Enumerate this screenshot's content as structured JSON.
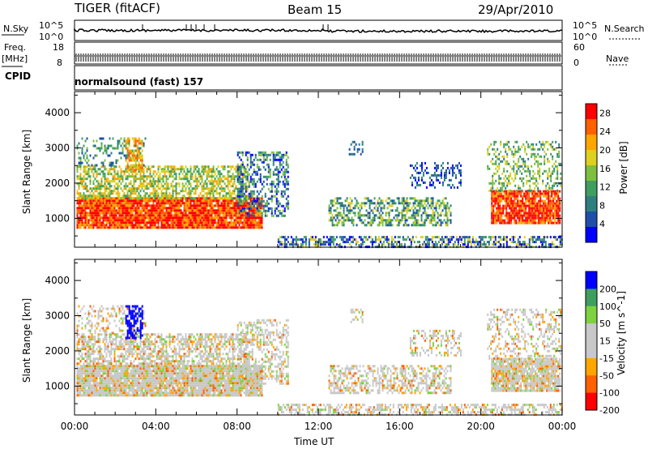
{
  "header": {
    "radar": "TIGER (fitACF)",
    "beam": "Beam 15",
    "date": "29/Apr/2010"
  },
  "top_panels": {
    "nsky_label": "N.Sky",
    "nsearch_label": "N.Search",
    "nsky_ticks": [
      "10^5",
      "10^0"
    ],
    "nsearch_ticks": [
      "10^5",
      "10^0"
    ],
    "freq_label_1": "Freq.",
    "freq_label_2": "[MHz]",
    "freq_ticks": [
      "18",
      "8"
    ],
    "nave_label": "Nave",
    "nave_ticks": [
      "60",
      "0"
    ],
    "cpid_label": "CPID",
    "cpid_value": "normalsound (fast) 157"
  },
  "colors": {
    "power_scale": [
      "#0000ff",
      "#1f4fa8",
      "#2f7f7f",
      "#3f9f5f",
      "#7fbf3f",
      "#dfcf1f",
      "#ffa500",
      "#ff6000",
      "#ff0000"
    ],
    "velocity_scale": [
      "#ff0000",
      "#ff6000",
      "#ffa500",
      "#c8c8c8",
      "#c8c8c8",
      "#7fd23f",
      "#3f9f5f",
      "#0000ff"
    ]
  },
  "chart_data": [
    {
      "type": "heatmap",
      "title": "Power",
      "xlabel": "Time UT",
      "ylabel": "Slant Range [km]",
      "x_ticks": [
        "00:00",
        "04:00",
        "08:00",
        "12:00",
        "16:00",
        "20:00",
        "00:00"
      ],
      "xlim_hours": [
        0,
        24
      ],
      "ylim": [
        180,
        4600
      ],
      "y_ticks": [
        1000,
        2000,
        3000,
        4000
      ],
      "colorbar": {
        "label": "Power [dB]",
        "ticks": [
          4,
          8,
          12,
          16,
          20,
          24,
          28
        ],
        "range": [
          0,
          30
        ]
      }
    },
    {
      "type": "heatmap",
      "title": "Velocity",
      "xlabel": "Time UT",
      "ylabel": "Slant Range [km]",
      "x_ticks": [
        "00:00",
        "04:00",
        "08:00",
        "12:00",
        "16:00",
        "20:00",
        "00:00"
      ],
      "xlim_hours": [
        0,
        24
      ],
      "ylim": [
        180,
        4600
      ],
      "y_ticks": [
        1000,
        2000,
        3000,
        4000
      ],
      "colorbar": {
        "label": "Velocity [m s^-1]",
        "ticks": [
          200,
          100,
          50,
          15,
          -15,
          -50,
          -100,
          -200
        ],
        "range": [
          -250,
          250
        ]
      }
    }
  ]
}
